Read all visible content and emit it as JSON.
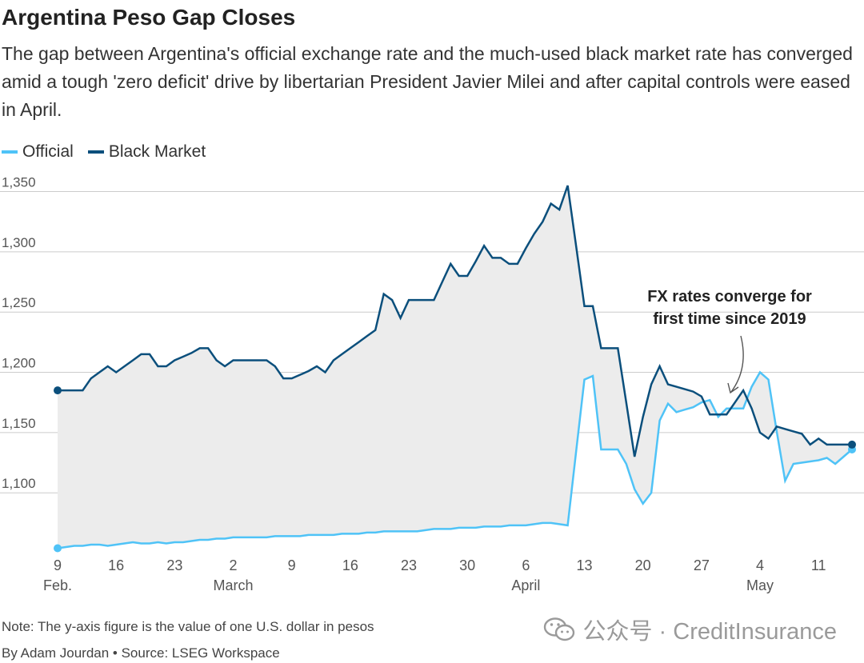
{
  "title": "Argentina Peso Gap Closes",
  "subtitle": "The gap between Argentina's official exchange rate and the much-used black market rate has converged amid a tough 'zero deficit' drive by libertarian President Javier Milei and after capital controls were eased in April.",
  "note": "Note: The y-axis figure is the value of one U.S. dollar in pesos",
  "byline": "By Adam Jourdan • Source: LSEG Workspace",
  "watermark": "公众号 · CreditInsurance",
  "colors": {
    "official": "#4fc3f7",
    "black_market": "#0b4f7c",
    "gap_fill": "#ececec",
    "grid": "#cccccc",
    "arrow": "#555555"
  },
  "chart_data": {
    "type": "line",
    "title": "Argentina Peso Gap Closes",
    "xlabel": "",
    "ylabel": "",
    "ylim": [
      1055,
      1357
    ],
    "grid": true,
    "y_ticks": [
      "1,100",
      "1,150",
      "1,200",
      "1,250",
      "1,300",
      "1,350"
    ],
    "x_ticks": [
      {
        "day": "9",
        "month": "Feb."
      },
      {
        "day": "16",
        "month": ""
      },
      {
        "day": "23",
        "month": ""
      },
      {
        "day": "2",
        "month": "March"
      },
      {
        "day": "9",
        "month": ""
      },
      {
        "day": "16",
        "month": ""
      },
      {
        "day": "23",
        "month": ""
      },
      {
        "day": "30",
        "month": ""
      },
      {
        "day": "6",
        "month": "April"
      },
      {
        "day": "13",
        "month": ""
      },
      {
        "day": "20",
        "month": ""
      },
      {
        "day": "27",
        "month": ""
      },
      {
        "day": "4",
        "month": "May"
      },
      {
        "day": "11",
        "month": ""
      }
    ],
    "legend": {
      "position": "top-left"
    },
    "annotation": {
      "text_line1": "FX rates converge for",
      "text_line2": "first time since 2019"
    },
    "x": [
      "2025-02-09",
      "2025-02-10",
      "2025-02-11",
      "2025-02-12",
      "2025-02-13",
      "2025-02-14",
      "2025-02-15",
      "2025-02-16",
      "2025-02-17",
      "2025-02-18",
      "2025-02-19",
      "2025-02-20",
      "2025-02-21",
      "2025-02-22",
      "2025-02-23",
      "2025-02-24",
      "2025-02-25",
      "2025-02-26",
      "2025-02-27",
      "2025-02-28",
      "2025-03-01",
      "2025-03-02",
      "2025-03-03",
      "2025-03-04",
      "2025-03-05",
      "2025-03-06",
      "2025-03-07",
      "2025-03-08",
      "2025-03-09",
      "2025-03-10",
      "2025-03-11",
      "2025-03-12",
      "2025-03-13",
      "2025-03-14",
      "2025-03-15",
      "2025-03-16",
      "2025-03-17",
      "2025-03-18",
      "2025-03-19",
      "2025-03-20",
      "2025-03-21",
      "2025-03-22",
      "2025-03-23",
      "2025-03-24",
      "2025-03-25",
      "2025-03-26",
      "2025-03-27",
      "2025-03-28",
      "2025-03-29",
      "2025-03-30",
      "2025-03-31",
      "2025-04-01",
      "2025-04-02",
      "2025-04-03",
      "2025-04-04",
      "2025-04-05",
      "2025-04-06",
      "2025-04-07",
      "2025-04-08",
      "2025-04-09",
      "2025-04-10",
      "2025-04-11",
      "2025-04-12",
      "2025-04-13",
      "2025-04-14",
      "2025-04-15",
      "2025-04-16",
      "2025-04-17",
      "2025-04-18",
      "2025-04-19",
      "2025-04-20",
      "2025-04-21",
      "2025-04-22",
      "2025-04-23",
      "2025-04-24",
      "2025-04-25",
      "2025-04-26",
      "2025-04-27",
      "2025-04-28",
      "2025-04-29",
      "2025-04-30",
      "2025-05-01",
      "2025-05-02",
      "2025-05-03",
      "2025-05-04",
      "2025-05-05",
      "2025-05-06",
      "2025-05-07",
      "2025-05-08",
      "2025-05-09",
      "2025-05-10",
      "2025-05-11",
      "2025-05-12",
      "2025-05-13",
      "2025-05-14",
      "2025-05-15"
    ],
    "series": [
      {
        "name": "Official",
        "values": [
          1054,
          1055,
          1056,
          1056,
          1057,
          1057,
          1056,
          1057,
          1058,
          1059,
          1058,
          1058,
          1059,
          1058,
          1059,
          1059,
          1060,
          1061,
          1061,
          1062,
          1062,
          1063,
          1063,
          1063,
          1063,
          1063,
          1064,
          1064,
          1064,
          1064,
          1065,
          1065,
          1065,
          1065,
          1066,
          1066,
          1066,
          1067,
          1067,
          1068,
          1068,
          1068,
          1068,
          1068,
          1069,
          1070,
          1070,
          1070,
          1071,
          1071,
          1071,
          1072,
          1072,
          1072,
          1073,
          1073,
          1073,
          1074,
          1075,
          1075,
          1074,
          1073,
          1134,
          1194,
          1197,
          1136,
          1136,
          1136,
          1124,
          1103,
          1091,
          1100,
          1160,
          1174,
          1167,
          1169,
          1171,
          1175,
          1177,
          1163,
          1170,
          1170,
          1170,
          1188,
          1200,
          1194,
          1151,
          1110,
          1124,
          1125,
          1126,
          1127,
          1129,
          1124,
          1130,
          1136
        ]
      },
      {
        "name": "Black Market",
        "values": [
          1185,
          1185,
          1185,
          1185,
          1195,
          1200,
          1205,
          1200,
          1205,
          1210,
          1215,
          1215,
          1205,
          1205,
          1210,
          1213,
          1216,
          1220,
          1220,
          1210,
          1205,
          1210,
          1210,
          1210,
          1210,
          1210,
          1205,
          1195,
          1195,
          1198,
          1201,
          1205,
          1200,
          1210,
          1215,
          1220,
          1225,
          1230,
          1235,
          1265,
          1260,
          1245,
          1260,
          1260,
          1260,
          1260,
          1275,
          1290,
          1280,
          1280,
          1292,
          1305,
          1295,
          1295,
          1290,
          1290,
          1303,
          1315,
          1325,
          1340,
          1335,
          1355,
          1305,
          1255,
          1255,
          1220,
          1220,
          1220,
          1175,
          1130,
          1163,
          1190,
          1205,
          1190,
          1188,
          1186,
          1184,
          1180,
          1165,
          1165,
          1165,
          1175,
          1185,
          1170,
          1150,
          1145,
          1155,
          1153,
          1151,
          1149,
          1140,
          1145,
          1140,
          1140,
          1140,
          1140
        ]
      }
    ]
  }
}
